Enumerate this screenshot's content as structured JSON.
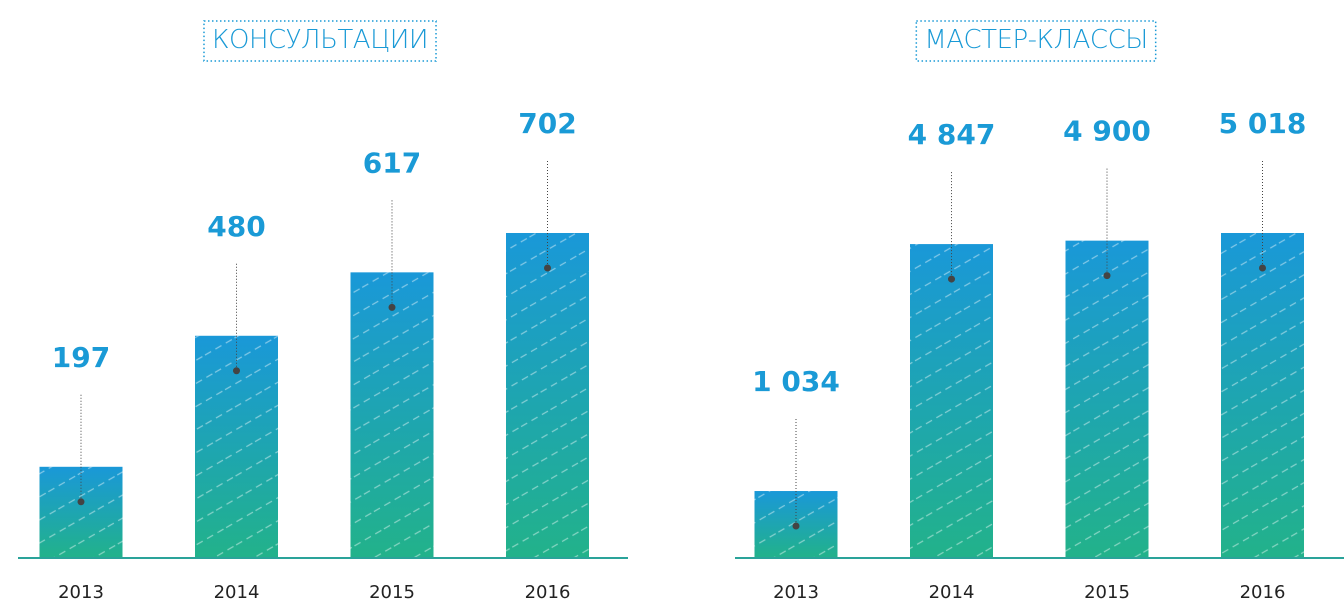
{
  "chart_data": [
    {
      "type": "bar",
      "title": "КОНСУЛЬТАЦИИ",
      "categories": [
        "2013",
        "2014",
        "2015",
        "2016"
      ],
      "values": [
        197,
        480,
        617,
        702
      ],
      "color": "#1a98d8"
    },
    {
      "type": "bar",
      "title": "МАСТЕР-КЛАССЫ",
      "categories": [
        "2013",
        "2014",
        "2015",
        "2016"
      ],
      "values": [
        1034,
        4847,
        4900,
        5018
      ],
      "value_labels": [
        "1 034",
        "4 847",
        "4 900",
        "5 018"
      ],
      "color": "#1a98d8"
    }
  ]
}
